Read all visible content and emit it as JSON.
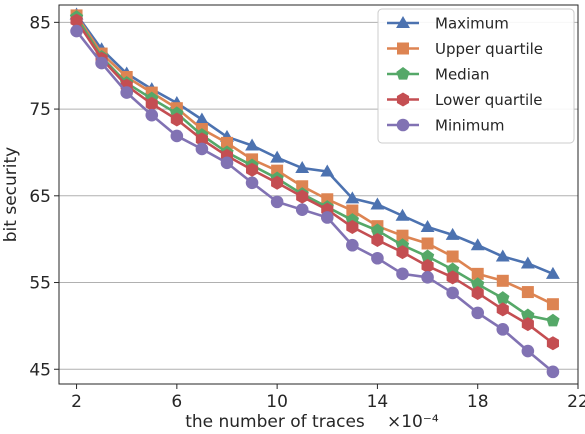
{
  "chart_data": {
    "type": "line",
    "xlabel": "the number of traces",
    "xlabel_exponent": "×10⁻⁴",
    "ylabel": "bit security",
    "xlim": [
      1.3,
      22
    ],
    "ylim": [
      43.3,
      87
    ],
    "xticks": [
      2,
      6,
      10,
      14,
      18,
      22
    ],
    "yticks": [
      45,
      55,
      65,
      75,
      85
    ],
    "grid": "horizontal",
    "legend_position": "top-right",
    "x": [
      2,
      3,
      4,
      5,
      6,
      7,
      8,
      9,
      10,
      11,
      12,
      13,
      14,
      15,
      16,
      17,
      18,
      19,
      20,
      21
    ],
    "series": [
      {
        "name": "Maximum",
        "color": "#4c72b0",
        "marker": "triangle",
        "values": [
          85.9,
          81.9,
          79.1,
          77.3,
          75.7,
          73.8,
          71.8,
          70.8,
          69.4,
          68.2,
          67.8,
          64.7,
          64.0,
          62.7,
          61.4,
          60.5,
          59.3,
          58.0,
          57.2,
          56.0
        ]
      },
      {
        "name": "Upper quartile",
        "color": "#dd8452",
        "marker": "square",
        "values": [
          85.8,
          81.4,
          78.7,
          76.9,
          75.1,
          72.7,
          71.1,
          69.2,
          67.9,
          66.1,
          64.6,
          63.3,
          61.5,
          60.4,
          59.5,
          58.0,
          56.0,
          55.2,
          53.9,
          52.5
        ]
      },
      {
        "name": "Median",
        "color": "#55a868",
        "marker": "pentagon",
        "values": [
          85.6,
          81.0,
          78.0,
          76.2,
          74.5,
          72.0,
          70.0,
          68.5,
          67.0,
          65.2,
          63.7,
          62.2,
          61.0,
          59.3,
          58.0,
          56.5,
          54.8,
          53.2,
          51.2,
          50.6
        ]
      },
      {
        "name": "Lower quartile",
        "color": "#c44e52",
        "marker": "hexagon",
        "values": [
          85.2,
          80.8,
          77.7,
          75.6,
          73.8,
          71.5,
          69.6,
          68.0,
          66.5,
          64.9,
          63.4,
          61.4,
          59.9,
          58.5,
          56.9,
          55.6,
          53.8,
          51.9,
          50.2,
          48.0
        ]
      },
      {
        "name": "Minimum",
        "color": "#8172b3",
        "marker": "circle",
        "values": [
          84.0,
          80.3,
          76.9,
          74.3,
          71.9,
          70.4,
          68.8,
          66.5,
          64.3,
          63.4,
          62.5,
          59.3,
          57.8,
          56.0,
          55.6,
          53.8,
          51.5,
          49.6,
          47.1,
          44.7
        ]
      }
    ]
  }
}
